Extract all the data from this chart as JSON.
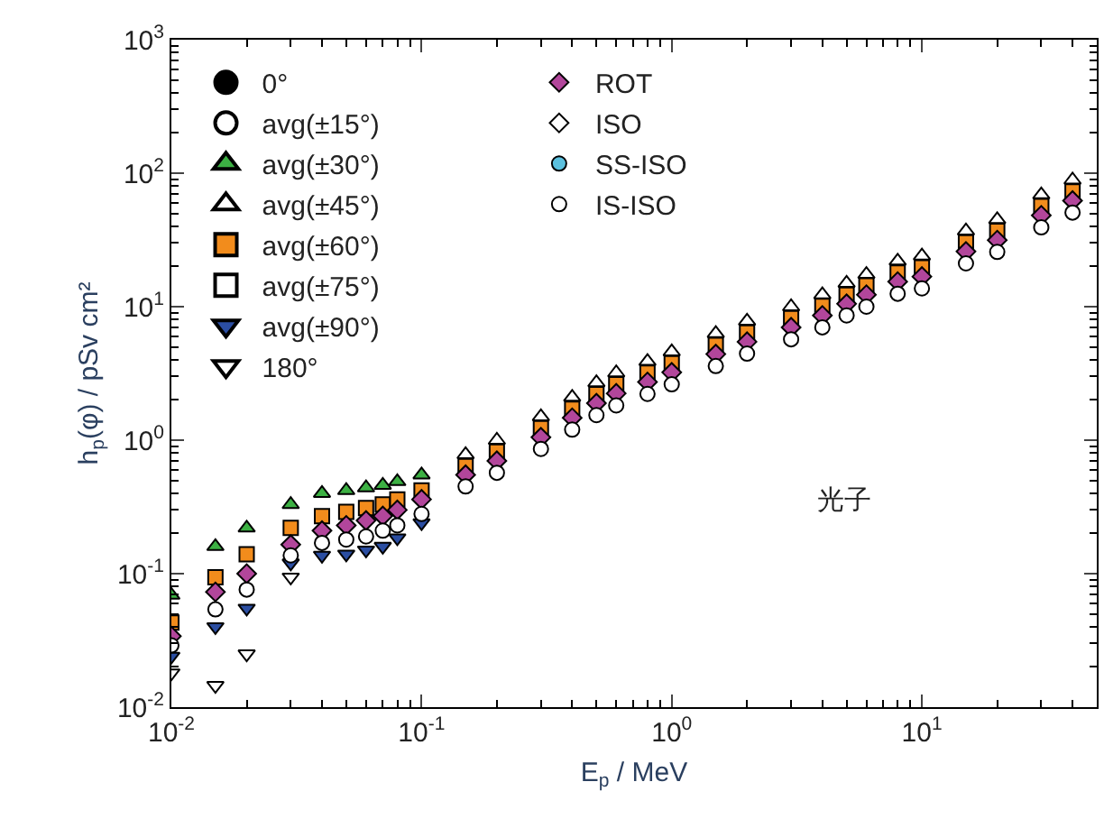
{
  "chart_data": {
    "type": "scatter",
    "xlabel": "E$_{p}$ / MeV",
    "ylabel": "h$_{p}$(φ) / pSv cm²",
    "log": "xy",
    "legend": "top left",
    "x": [
      0.01,
      0.015,
      0.02,
      0.03,
      0.04,
      0.05,
      0.06,
      0.07,
      0.08,
      0.1,
      0.15,
      0.2,
      0.3,
      0.4,
      0.5,
      0.6,
      0.8,
      1,
      1.5,
      2,
      3,
      4,
      5,
      6,
      8,
      10,
      15,
      20,
      30,
      40
    ],
    "xlim": [
      0.01,
      50
    ],
    "ylim": [
      0.01,
      1000
    ],
    "xticks": [
      {
        "value": 0.01,
        "label": "10$^{-2}$"
      },
      {
        "value": 0.1,
        "label": "10$^{-1}$"
      },
      {
        "value": 1,
        "label": "10$^{0}$"
      },
      {
        "value": 10,
        "label": "10$^{1}$"
      }
    ],
    "yticks": [
      {
        "value": 0.01,
        "label": "10$^{-2}$"
      },
      {
        "value": 0.1,
        "label": "10$^{-1}$"
      },
      {
        "value": 1,
        "label": "10$^{0}$"
      },
      {
        "value": 10,
        "label": "10$^{1}$"
      },
      {
        "value": 100,
        "label": "10$^{2}$"
      },
      {
        "value": 1000,
        "label": "10$^{3}$"
      }
    ],
    "annotations": [
      "光子"
    ],
    "series": [
      {
        "name": "0°",
        "color": "#000000",
        "marker": "circle",
        "values": [
          null,
          null,
          null,
          null,
          null,
          null,
          null,
          null,
          null,
          null,
          null,
          null,
          null,
          null,
          null,
          null,
          null,
          null,
          null,
          null,
          null,
          null,
          null,
          null,
          null,
          null,
          null,
          null,
          null,
          null
        ]
      },
      {
        "name": "avg(±15°)",
        "color": "#ffffff",
        "marker": "circle",
        "values": [
          null,
          null,
          null,
          null,
          null,
          null,
          null,
          null,
          null,
          null,
          null,
          null,
          null,
          null,
          null,
          null,
          null,
          null,
          null,
          null,
          null,
          null,
          null,
          null,
          null,
          null,
          null,
          null,
          null,
          null
        ]
      },
      {
        "name": "avg(±30°)",
        "color": "#3cb043",
        "marker": "triangle",
        "values": [
          0.069,
          0.16,
          0.22,
          0.33,
          0.4,
          0.42,
          0.44,
          0.46,
          0.49,
          0.55,
          null,
          null,
          null,
          null,
          null,
          null,
          null,
          null,
          null,
          null,
          null,
          null,
          null,
          null,
          null,
          null,
          null,
          null,
          null,
          null
        ]
      },
      {
        "name": "avg(±45°)",
        "color": "#ffffff",
        "marker": "triangle",
        "values": [
          null,
          null,
          null,
          null,
          null,
          null,
          null,
          null,
          null,
          null,
          0.78,
          1.0,
          1.5,
          2.1,
          2.7,
          3.2,
          3.9,
          4.6,
          6.3,
          7.8,
          10,
          12.3,
          15,
          17.5,
          22,
          24,
          37,
          45,
          69,
          89
        ]
      },
      {
        "name": "avg(±60°)",
        "color": "#f28c1c",
        "marker": "square",
        "values": [
          0.043,
          0.094,
          0.14,
          0.22,
          0.27,
          0.29,
          0.31,
          0.33,
          0.36,
          0.42,
          0.64,
          0.82,
          1.23,
          1.72,
          2.21,
          2.62,
          3.2,
          3.77,
          5.17,
          6.4,
          8.2,
          10.1,
          12.3,
          14.4,
          18,
          19.7,
          30.3,
          36.9,
          56.6,
          73
        ]
      },
      {
        "name": "avg(±75°)",
        "color": "#ffffff",
        "marker": "square",
        "values": [
          null,
          null,
          null,
          null,
          null,
          null,
          null,
          null,
          null,
          null,
          null,
          null,
          null,
          null,
          null,
          null,
          null,
          null,
          null,
          null,
          null,
          null,
          null,
          null,
          null,
          null,
          null,
          null,
          null,
          null
        ]
      },
      {
        "name": "avg(±90°)",
        "color": "#2b4ea2",
        "marker": "triangle-down",
        "values": [
          0.024,
          0.04,
          0.055,
          0.12,
          0.137,
          0.14,
          0.15,
          0.16,
          0.185,
          0.24,
          null,
          null,
          null,
          null,
          null,
          null,
          null,
          null,
          null,
          null,
          null,
          null,
          null,
          null,
          null,
          null,
          null,
          null,
          null,
          null
        ]
      },
      {
        "name": "180°",
        "color": "#ffffff",
        "marker": "triangle-down",
        "values": [
          0.018,
          0.0145,
          0.025,
          0.094,
          null,
          null,
          null,
          null,
          null,
          null,
          null,
          null,
          null,
          null,
          null,
          null,
          null,
          null,
          null,
          null,
          null,
          null,
          null,
          null,
          null,
          null,
          null,
          null,
          null,
          null
        ]
      },
      {
        "name": "ROT",
        "color": "#b2469b",
        "marker": "diamond",
        "values": [
          0.034,
          0.073,
          0.1,
          0.165,
          0.21,
          0.23,
          0.25,
          0.27,
          0.3,
          0.36,
          0.55,
          0.7,
          1.05,
          1.47,
          1.89,
          2.24,
          2.73,
          3.22,
          4.41,
          5.46,
          7,
          8.6,
          10.5,
          12.3,
          15.4,
          16.8,
          25.9,
          31.5,
          48.3,
          62.3
        ]
      },
      {
        "name": "ISO",
        "color": "#ffffff",
        "marker": "diamond",
        "values": [
          null,
          null,
          null,
          null,
          null,
          null,
          null,
          null,
          null,
          null,
          null,
          null,
          null,
          null,
          null,
          null,
          null,
          null,
          null,
          null,
          null,
          null,
          null,
          null,
          null,
          null,
          null,
          null,
          null,
          null
        ]
      },
      {
        "name": "SS-ISO",
        "color": "#5bc0de",
        "values": [
          null,
          null,
          null,
          null,
          null,
          null,
          null,
          null,
          null,
          null,
          null,
          null,
          null,
          null,
          null,
          null,
          null,
          null,
          null,
          null,
          null,
          null,
          null,
          null,
          null,
          null,
          null,
          null,
          null,
          null
        ]
      },
      {
        "name": "IS-ISO",
        "color": "#ffffff",
        "values": [
          0.029,
          0.054,
          0.076,
          0.137,
          0.17,
          0.18,
          0.19,
          0.21,
          0.23,
          0.28,
          0.45,
          0.57,
          0.86,
          1.2,
          1.54,
          1.82,
          2.22,
          2.62,
          3.59,
          4.45,
          5.7,
          7,
          8.6,
          10,
          12.5,
          13.7,
          21.1,
          25.7,
          39.3,
          50.7
        ]
      }
    ]
  }
}
